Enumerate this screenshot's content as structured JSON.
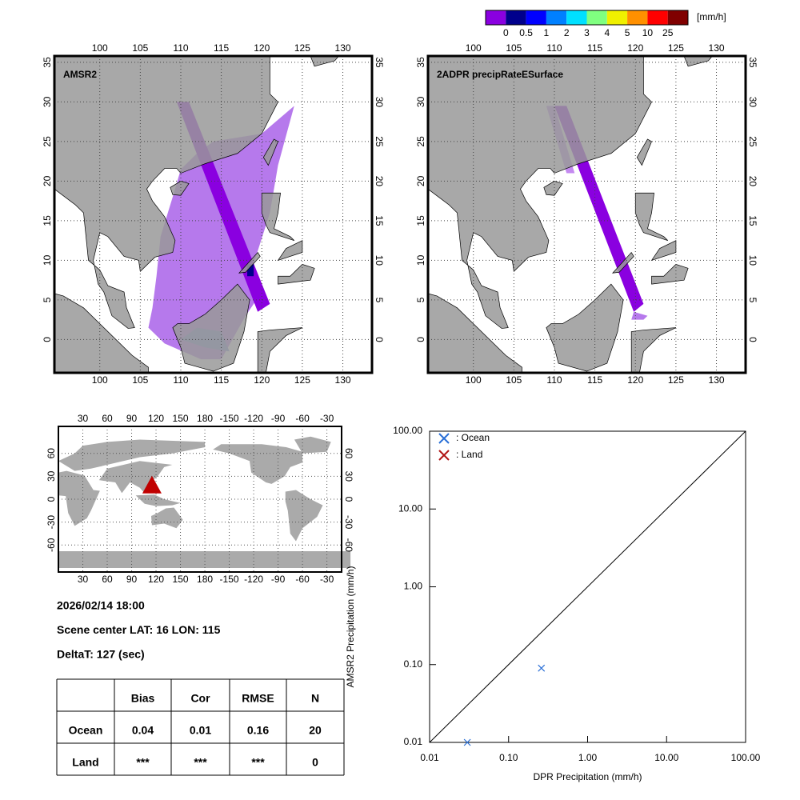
{
  "colorbar": {
    "unit": "[mm/h]",
    "colors": [
      "#8a00e0",
      "#00008c",
      "#0000ff",
      "#0080ff",
      "#00e0ff",
      "#80ff80",
      "#f0f000",
      "#ff9000",
      "#ff0000",
      "#800000"
    ],
    "labels": [
      "0",
      "0.5",
      "1",
      "2",
      "3",
      "4",
      "5",
      "10",
      "25"
    ]
  },
  "maps": [
    {
      "title": "AMSR2"
    },
    {
      "title": "2ADPR precipRateESurface"
    }
  ],
  "map_lonlim": [
    94.4,
    133.6
  ],
  "map_latlim": [
    -4.2,
    35.8
  ],
  "map_lon_ticks": [
    100,
    105,
    110,
    115,
    120,
    125,
    130
  ],
  "map_lat_ticks": [
    0,
    5,
    10,
    15,
    20,
    25,
    30,
    35
  ],
  "world_lon_ticks": [
    30,
    60,
    90,
    120,
    150,
    180,
    -150,
    -120,
    -90,
    -60,
    -30
  ],
  "world_lat_ticks": [
    60,
    30,
    0,
    -30,
    -60
  ],
  "scene_marker": {
    "lat": 16,
    "lon": 115
  },
  "info": {
    "time": "2026/02/14 18:00",
    "scene": "Scene center LAT: 16   LON: 115",
    "delta": "DeltaT:  127 (sec)"
  },
  "table": {
    "header": [
      "Bias",
      "Cor",
      "RMSE",
      "N"
    ],
    "rows": [
      [
        "Ocean",
        "0.04",
        "0.01",
        "0.16",
        "20"
      ],
      [
        "Land",
        "***",
        "***",
        "***",
        "0"
      ]
    ]
  },
  "chart_data": {
    "type": "scatter",
    "xlabel": "DPR Precipitation (mm/h)",
    "ylabel": "AMSR2 Precipitation (mm/h)",
    "log_x": true,
    "log_y": true,
    "xlim": [
      0.01,
      100
    ],
    "ylim": [
      0.01,
      100
    ],
    "xticks": [
      {
        "value": 0.01,
        "label": "0.01"
      },
      {
        "value": 0.1,
        "label": "0.10"
      },
      {
        "value": 1,
        "label": "1.00"
      },
      {
        "value": 10,
        "label": "10.00"
      },
      {
        "value": 100,
        "label": "100.00"
      }
    ],
    "yticks": [
      {
        "value": 0.01,
        "label": "0.01"
      },
      {
        "value": 0.1,
        "label": "0.10"
      },
      {
        "value": 1,
        "label": "1.00"
      },
      {
        "value": 10,
        "label": "10.00"
      },
      {
        "value": 100,
        "label": "100.00"
      }
    ],
    "diagonal": true,
    "series": [
      {
        "name": ": Ocean",
        "color": "#2a6fd6",
        "x": [
          0.03,
          0.26
        ],
        "values": [
          0.01,
          0.09
        ]
      },
      {
        "name": ": Land",
        "color": "#b01515",
        "x": [],
        "values": []
      }
    ]
  }
}
